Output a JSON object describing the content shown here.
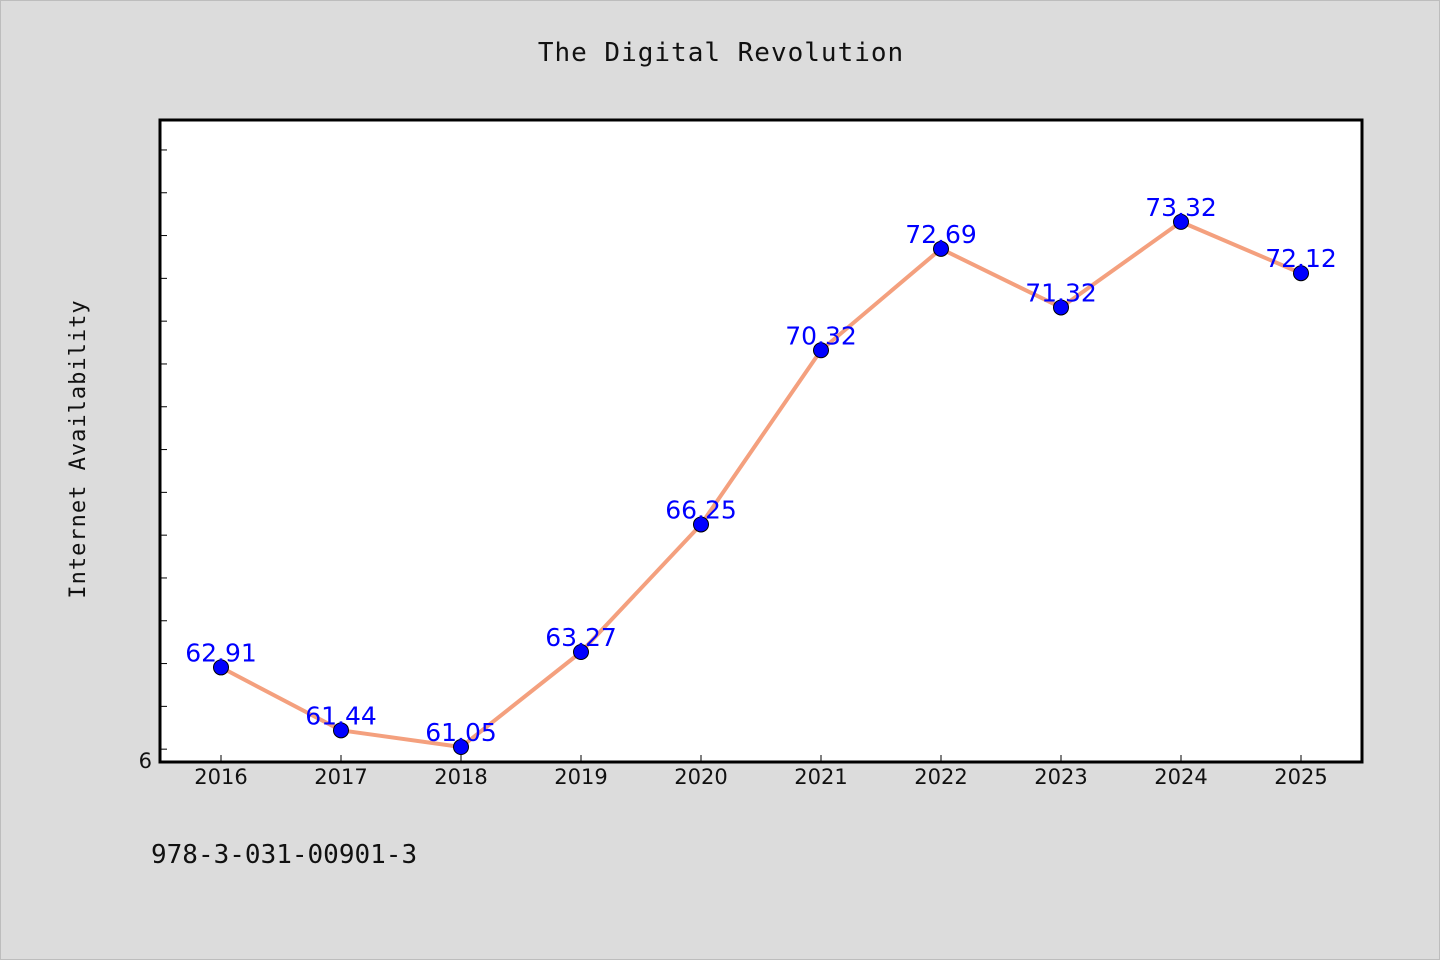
{
  "chart_data": {
    "type": "line",
    "title": "The Digital Revolution",
    "xlabel": "",
    "ylabel": "Internet Availability",
    "categories": [
      "2016",
      "2017",
      "2018",
      "2019",
      "2020",
      "2021",
      "2022",
      "2023",
      "2024",
      "2025"
    ],
    "series": [
      {
        "values": [
          62.91,
          61.44,
          61.05,
          63.27,
          66.25,
          70.32,
          72.69,
          71.32,
          73.32,
          72.12
        ],
        "data_labels": [
          "62.91",
          "61.44",
          "61.05",
          "63.27",
          "66.25",
          "70.32",
          "72.69",
          "71.32",
          "73.32",
          "72.12"
        ]
      }
    ],
    "ylim": [
      60.7,
      75.7
    ],
    "y_tick_step": 1,
    "y_tick_labels_shown": [
      "6"
    ],
    "grid": false,
    "colors": {
      "line": "#f4a07e",
      "marker": "#0000ff",
      "data_label": "#0000ff",
      "figure_background": "#dcdcdc",
      "plot_background": "#ffffff"
    }
  },
  "footer": {
    "isbn": "978-3-031-00901-3"
  }
}
